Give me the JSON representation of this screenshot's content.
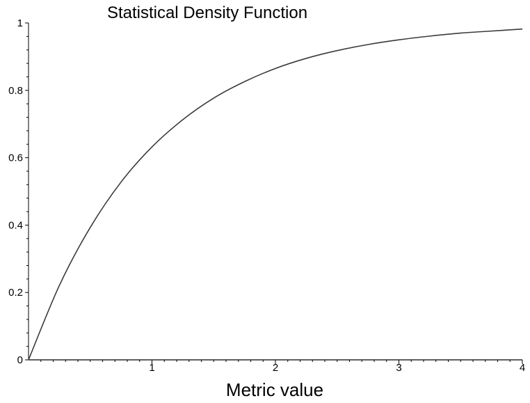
{
  "chart_data": {
    "type": "line",
    "title": "Statistical Density Function",
    "xlabel": "Metric value",
    "ylabel": "",
    "xlim": [
      0,
      4
    ],
    "ylim": [
      0,
      1
    ],
    "x_ticks": [
      1,
      2,
      3,
      4
    ],
    "y_ticks": [
      0,
      0.2,
      0.4,
      0.6,
      0.8,
      1
    ],
    "grid": false,
    "legend": "none",
    "series": [
      {
        "x": [
          0,
          0.25,
          0.5,
          0.75,
          1,
          1.25,
          1.5,
          1.75,
          2,
          2.25,
          2.5,
          2.75,
          3,
          3.25,
          3.5,
          3.75,
          4
        ],
        "y": [
          0,
          0.221,
          0.393,
          0.528,
          0.632,
          0.713,
          0.777,
          0.826,
          0.865,
          0.895,
          0.918,
          0.936,
          0.95,
          0.961,
          0.97,
          0.976,
          0.982
        ],
        "color": "#3a3a3a"
      }
    ]
  }
}
